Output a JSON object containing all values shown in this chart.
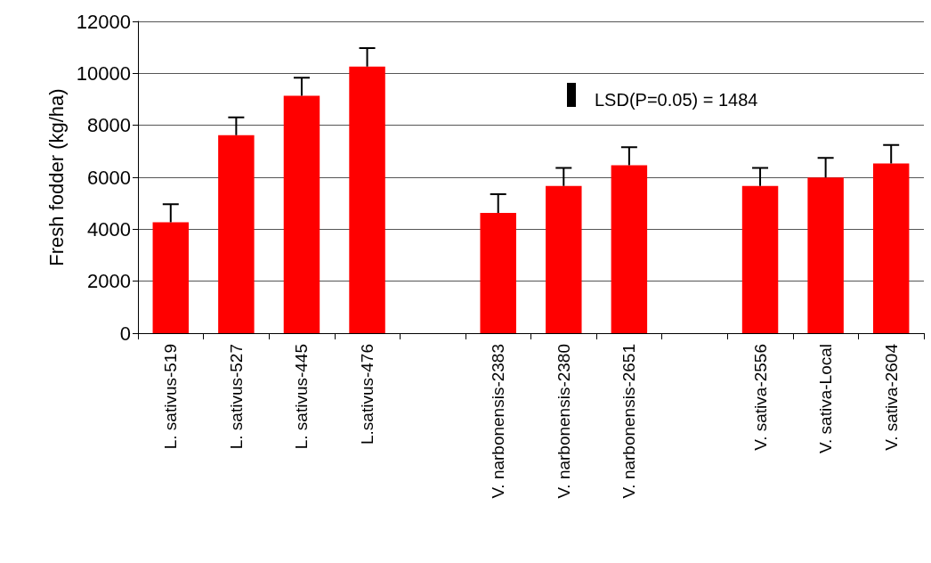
{
  "chart_data": {
    "type": "bar",
    "ylabel": "Fresh fodder (kg/ha)",
    "categories": [
      "L. sativus-519",
      "L. sativus-527",
      "L. sativus-445",
      "L.sativus-476",
      null,
      "V. narbonensis-2383",
      "V. narbonensis-2380",
      "V. narbonensis-2651",
      null,
      "V. sativa-2556",
      "V. sativa-Local",
      "V. sativa-2604"
    ],
    "values": [
      4270,
      7620,
      9140,
      10260,
      null,
      4630,
      5670,
      6460,
      null,
      5670,
      5990,
      6530
    ],
    "errors": [
      [
        4270,
        4960
      ],
      [
        7620,
        8310
      ],
      [
        9140,
        9830
      ],
      [
        10260,
        10970
      ],
      null,
      [
        4630,
        5350
      ],
      [
        5670,
        6360
      ],
      [
        6460,
        7160
      ],
      null,
      [
        5670,
        6360
      ],
      [
        5990,
        6750
      ],
      [
        6530,
        7240
      ]
    ],
    "color": "#ff0000",
    "ylim": [
      0,
      12000
    ],
    "yticks": [
      0,
      2000,
      4000,
      6000,
      8000,
      10000,
      12000
    ],
    "grid": "y",
    "annotations": [
      "LSD(P=0.05) = 1484"
    ]
  }
}
